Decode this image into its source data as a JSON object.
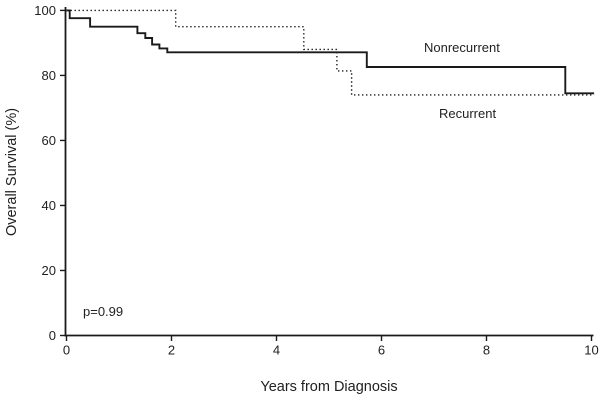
{
  "chart_data": {
    "type": "line",
    "subtype": "kaplan-meier-step",
    "title": "",
    "xlabel": "Years from Diagnosis",
    "ylabel": "Overall Survival (%)",
    "xlim": [
      0,
      10
    ],
    "ylim": [
      0,
      100
    ],
    "xticks": [
      0,
      2,
      4,
      6,
      8,
      10
    ],
    "yticks": [
      0,
      20,
      40,
      60,
      80,
      100
    ],
    "grid": false,
    "legend_position": "inline-labels",
    "annotation": {
      "text": "p=0.99",
      "x": 0.35,
      "y": 7
    },
    "line_color": "#1a1a1a",
    "series": [
      {
        "name": "Nonrecurrent",
        "line_style": "solid",
        "color": "#1a1a1a",
        "steps": [
          [
            0,
            100
          ],
          [
            0.06,
            97.6
          ],
          [
            0.45,
            95
          ],
          [
            1.35,
            93
          ],
          [
            1.5,
            91.5
          ],
          [
            1.63,
            89.5
          ],
          [
            1.77,
            88.3
          ],
          [
            1.92,
            87.1
          ],
          [
            5.72,
            82.6
          ],
          [
            9.5,
            74.5
          ],
          [
            10.05,
            74.5
          ]
        ]
      },
      {
        "name": "Recurrent",
        "line_style": "dotted",
        "color": "#1a1a1a",
        "steps": [
          [
            0,
            100
          ],
          [
            2.08,
            95
          ],
          [
            4.52,
            88
          ],
          [
            5.15,
            81.4
          ],
          [
            5.43,
            74
          ],
          [
            10.05,
            74
          ]
        ]
      }
    ]
  }
}
